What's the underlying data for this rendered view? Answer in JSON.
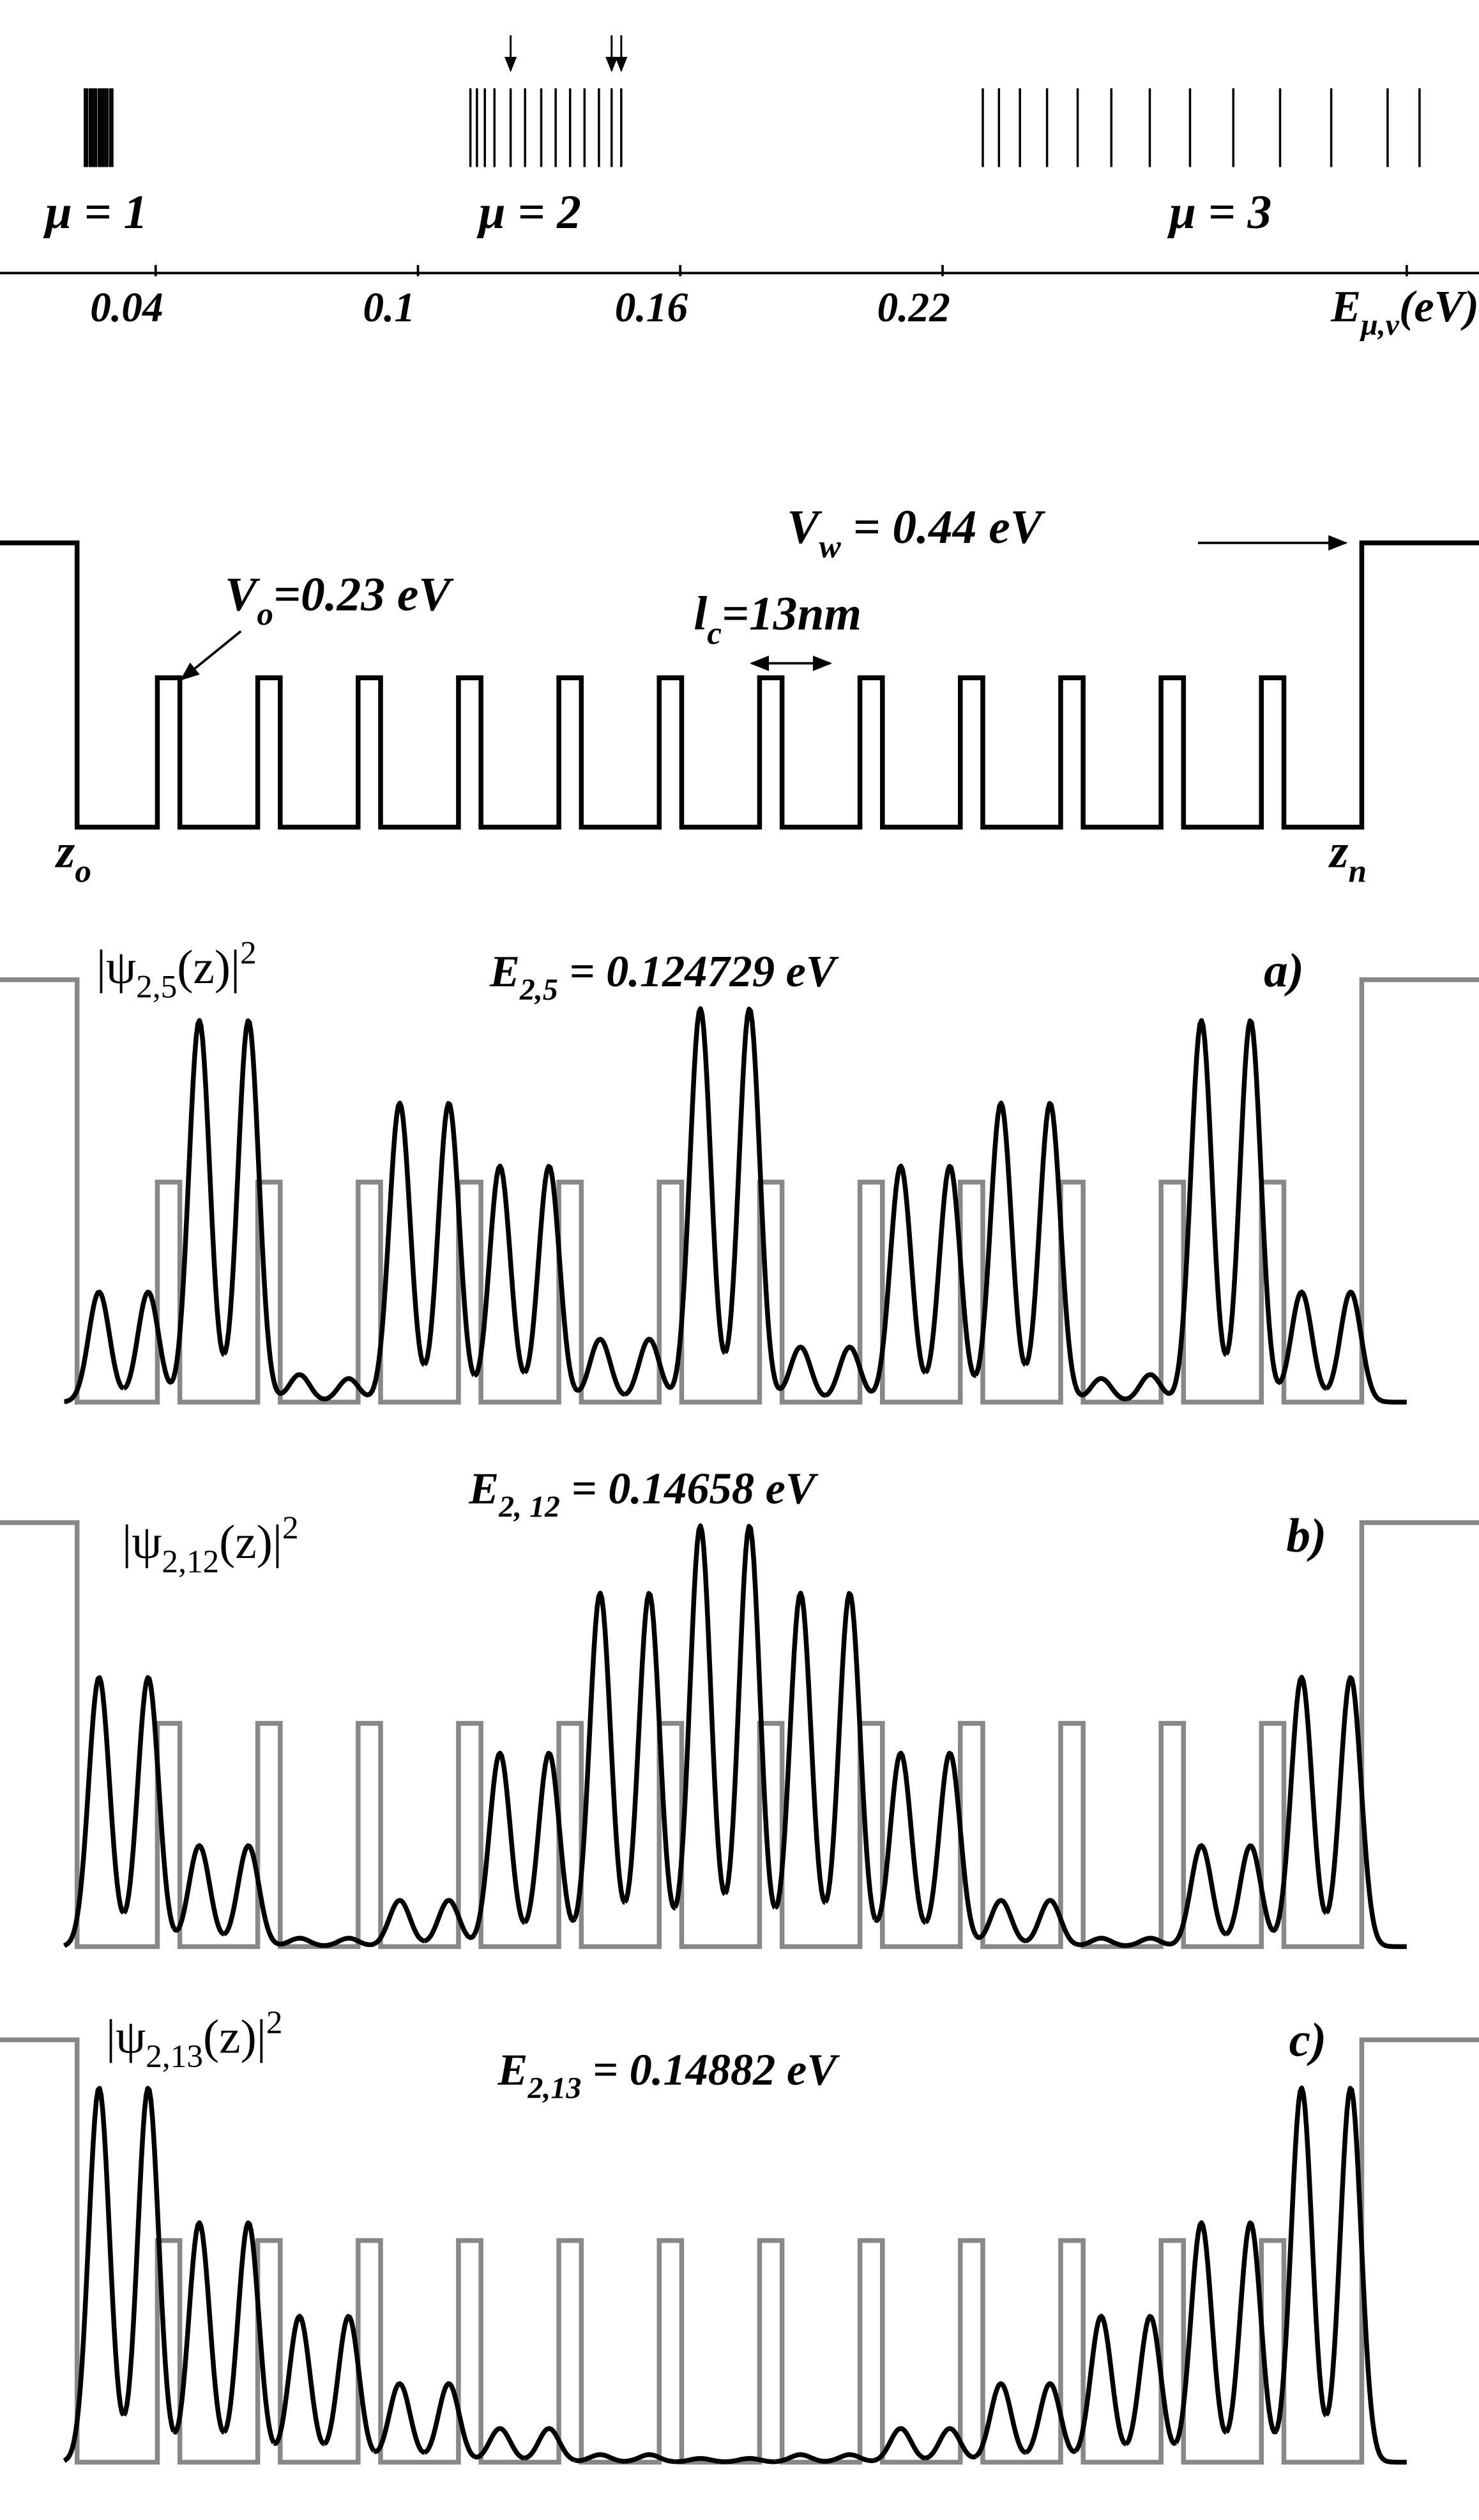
{
  "spectrum": {
    "type": "levels",
    "bands": [
      {
        "label": {
          "base": "μ = 1"
        },
        "values": [
          0.0238,
          0.0243,
          0.0249,
          0.0254,
          0.0259,
          0.0264,
          0.027,
          0.0275,
          0.028,
          0.0285,
          0.029,
          0.0296,
          0.0301
        ]
      },
      {
        "label": {
          "base": "μ = 2"
        },
        "values": [
          0.112,
          0.1135,
          0.1153,
          0.1175,
          0.1212,
          0.1245,
          0.1282,
          0.1315,
          0.1348,
          0.1381,
          0.1414,
          0.1443,
          0.1465
        ]
      },
      {
        "label": {
          "base": "μ = 3"
        },
        "values": [
          0.2292,
          0.2329,
          0.2377,
          0.2439,
          0.2509,
          0.2586,
          0.2674,
          0.2766,
          0.2865,
          0.2972,
          0.3089,
          0.3218,
          0.3291
        ]
      }
    ],
    "xlim": [
      0.0044,
      0.3427
    ],
    "xticks": [
      0.04,
      0.1,
      0.16,
      0.22
    ],
    "xlabel": {
      "base": "E",
      "sub": "μ,ν",
      "rest": "(eV)"
    }
  },
  "potential": {
    "barrier": {
      "base": "V",
      "sub": "o",
      "rest": "=0.23 eV"
    },
    "wall": {
      "base": "V",
      "sub": "w",
      "rest": " = 0.44 eV"
    },
    "period": {
      "base": "l",
      "sub": "c",
      "rest": "=13nm"
    },
    "left": {
      "base": "z",
      "sub": "o"
    },
    "right": {
      "base": "z",
      "sub": "n"
    }
  },
  "panels": [
    {
      "tag": "a)",
      "energy": {
        "base": "E",
        "sub": "2,5",
        "rest": " = 0.124729 eV"
      },
      "psi": {
        "base": "|ψ",
        "sub": "2,5",
        "rest": "(z)|",
        "sup": "2"
      },
      "lobes": [
        0.28,
        0.28,
        0.97,
        0.97,
        0.07,
        0.06,
        0.76,
        0.76,
        0.6,
        0.6,
        0.16,
        0.16,
        1,
        1,
        0.14,
        0.14,
        0.6,
        0.6,
        0.76,
        0.76,
        0.06,
        0.07,
        0.97,
        0.97,
        0.28,
        0.28
      ]
    },
    {
      "tag": "b)",
      "energy": {
        "base": "E",
        "sub": "2, 12",
        "rest": " = 0.14658 eV"
      },
      "psi": {
        "base": "|ψ",
        "sub": "2,12",
        "rest": "(z)|",
        "sup": "2"
      },
      "lobes": [
        0.64,
        0.64,
        0.24,
        0.24,
        0.02,
        0.02,
        0.11,
        0.11,
        0.46,
        0.46,
        0.84,
        0.84,
        1,
        1,
        0.84,
        0.84,
        0.46,
        0.46,
        0.11,
        0.11,
        0.02,
        0.02,
        0.24,
        0.24,
        0.64,
        0.64
      ]
    },
    {
      "tag": "c)",
      "energy": {
        "base": "E",
        "sub": "2,13",
        "rest": " = 0.14882 eV"
      },
      "psi": {
        "base": "|ψ",
        "sub": "2,13",
        "rest": "(z)|",
        "sup": "2"
      },
      "lobes": [
        1,
        1,
        0.64,
        0.64,
        0.39,
        0.39,
        0.21,
        0.21,
        0.09,
        0.09,
        0.02,
        0.02,
        0.01,
        0.01,
        0.02,
        0.02,
        0.09,
        0.09,
        0.21,
        0.21,
        0.39,
        0.39,
        0.64,
        0.64,
        1,
        1
      ]
    }
  ]
}
